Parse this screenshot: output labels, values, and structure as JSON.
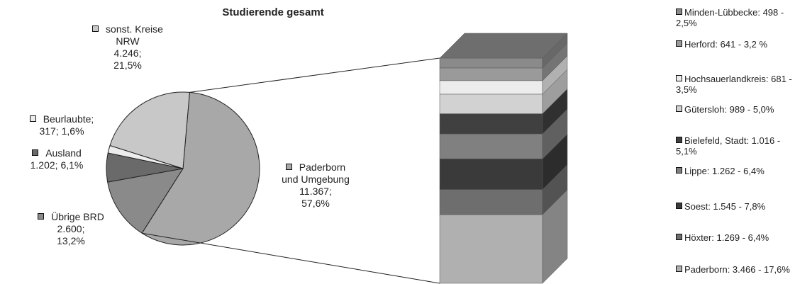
{
  "chart_data": [
    {
      "type": "pie",
      "title": "Studierende gesamt",
      "categories": [
        "Paderborn und Umgebung",
        "Übrige BRD",
        "Ausland",
        "Beurlaubte;",
        "sonst. Kreise NRW"
      ],
      "values": [
        11367,
        2600,
        1202,
        317,
        4246
      ],
      "value_labels": [
        "11.367; 57,6%",
        "2.600; 13,2%",
        "1.202; 6,1%",
        "317; 1,6%",
        "4.246; 21,5%"
      ],
      "colors": [
        "#a8a8a8",
        "#8a8a8a",
        "#6a6a6a",
        "#ececec",
        "#c8c8c8"
      ]
    },
    {
      "type": "bar",
      "values": [
        3466,
        1269,
        1545,
        1262,
        1016,
        989,
        681,
        641,
        498
      ],
      "value_labels": [
        "Paderborn: 3.466 - 17,6%",
        "Höxter: 1.269 - 6,4%",
        "Soest: 1.545 - 7,8%",
        "Lippe: 1.262 - 6,4%",
        "Bielefeld, Stadt: 1.016 - 5,1%",
        "Gütersloh: 989 - 5,0%",
        "Hochsauerlandkreis: 681 - 3,5%",
        "Herford: 641 - 3,2 %",
        "Minden-Lübbecke: 498 - 2,5%"
      ],
      "colors": [
        "#b0b0b0",
        "#6e6e6e",
        "#3a3a3a",
        "#808080",
        "#404040",
        "#d2d2d2",
        "#ececec",
        "#9a9a9a",
        "#8a8a8a"
      ]
    }
  ]
}
